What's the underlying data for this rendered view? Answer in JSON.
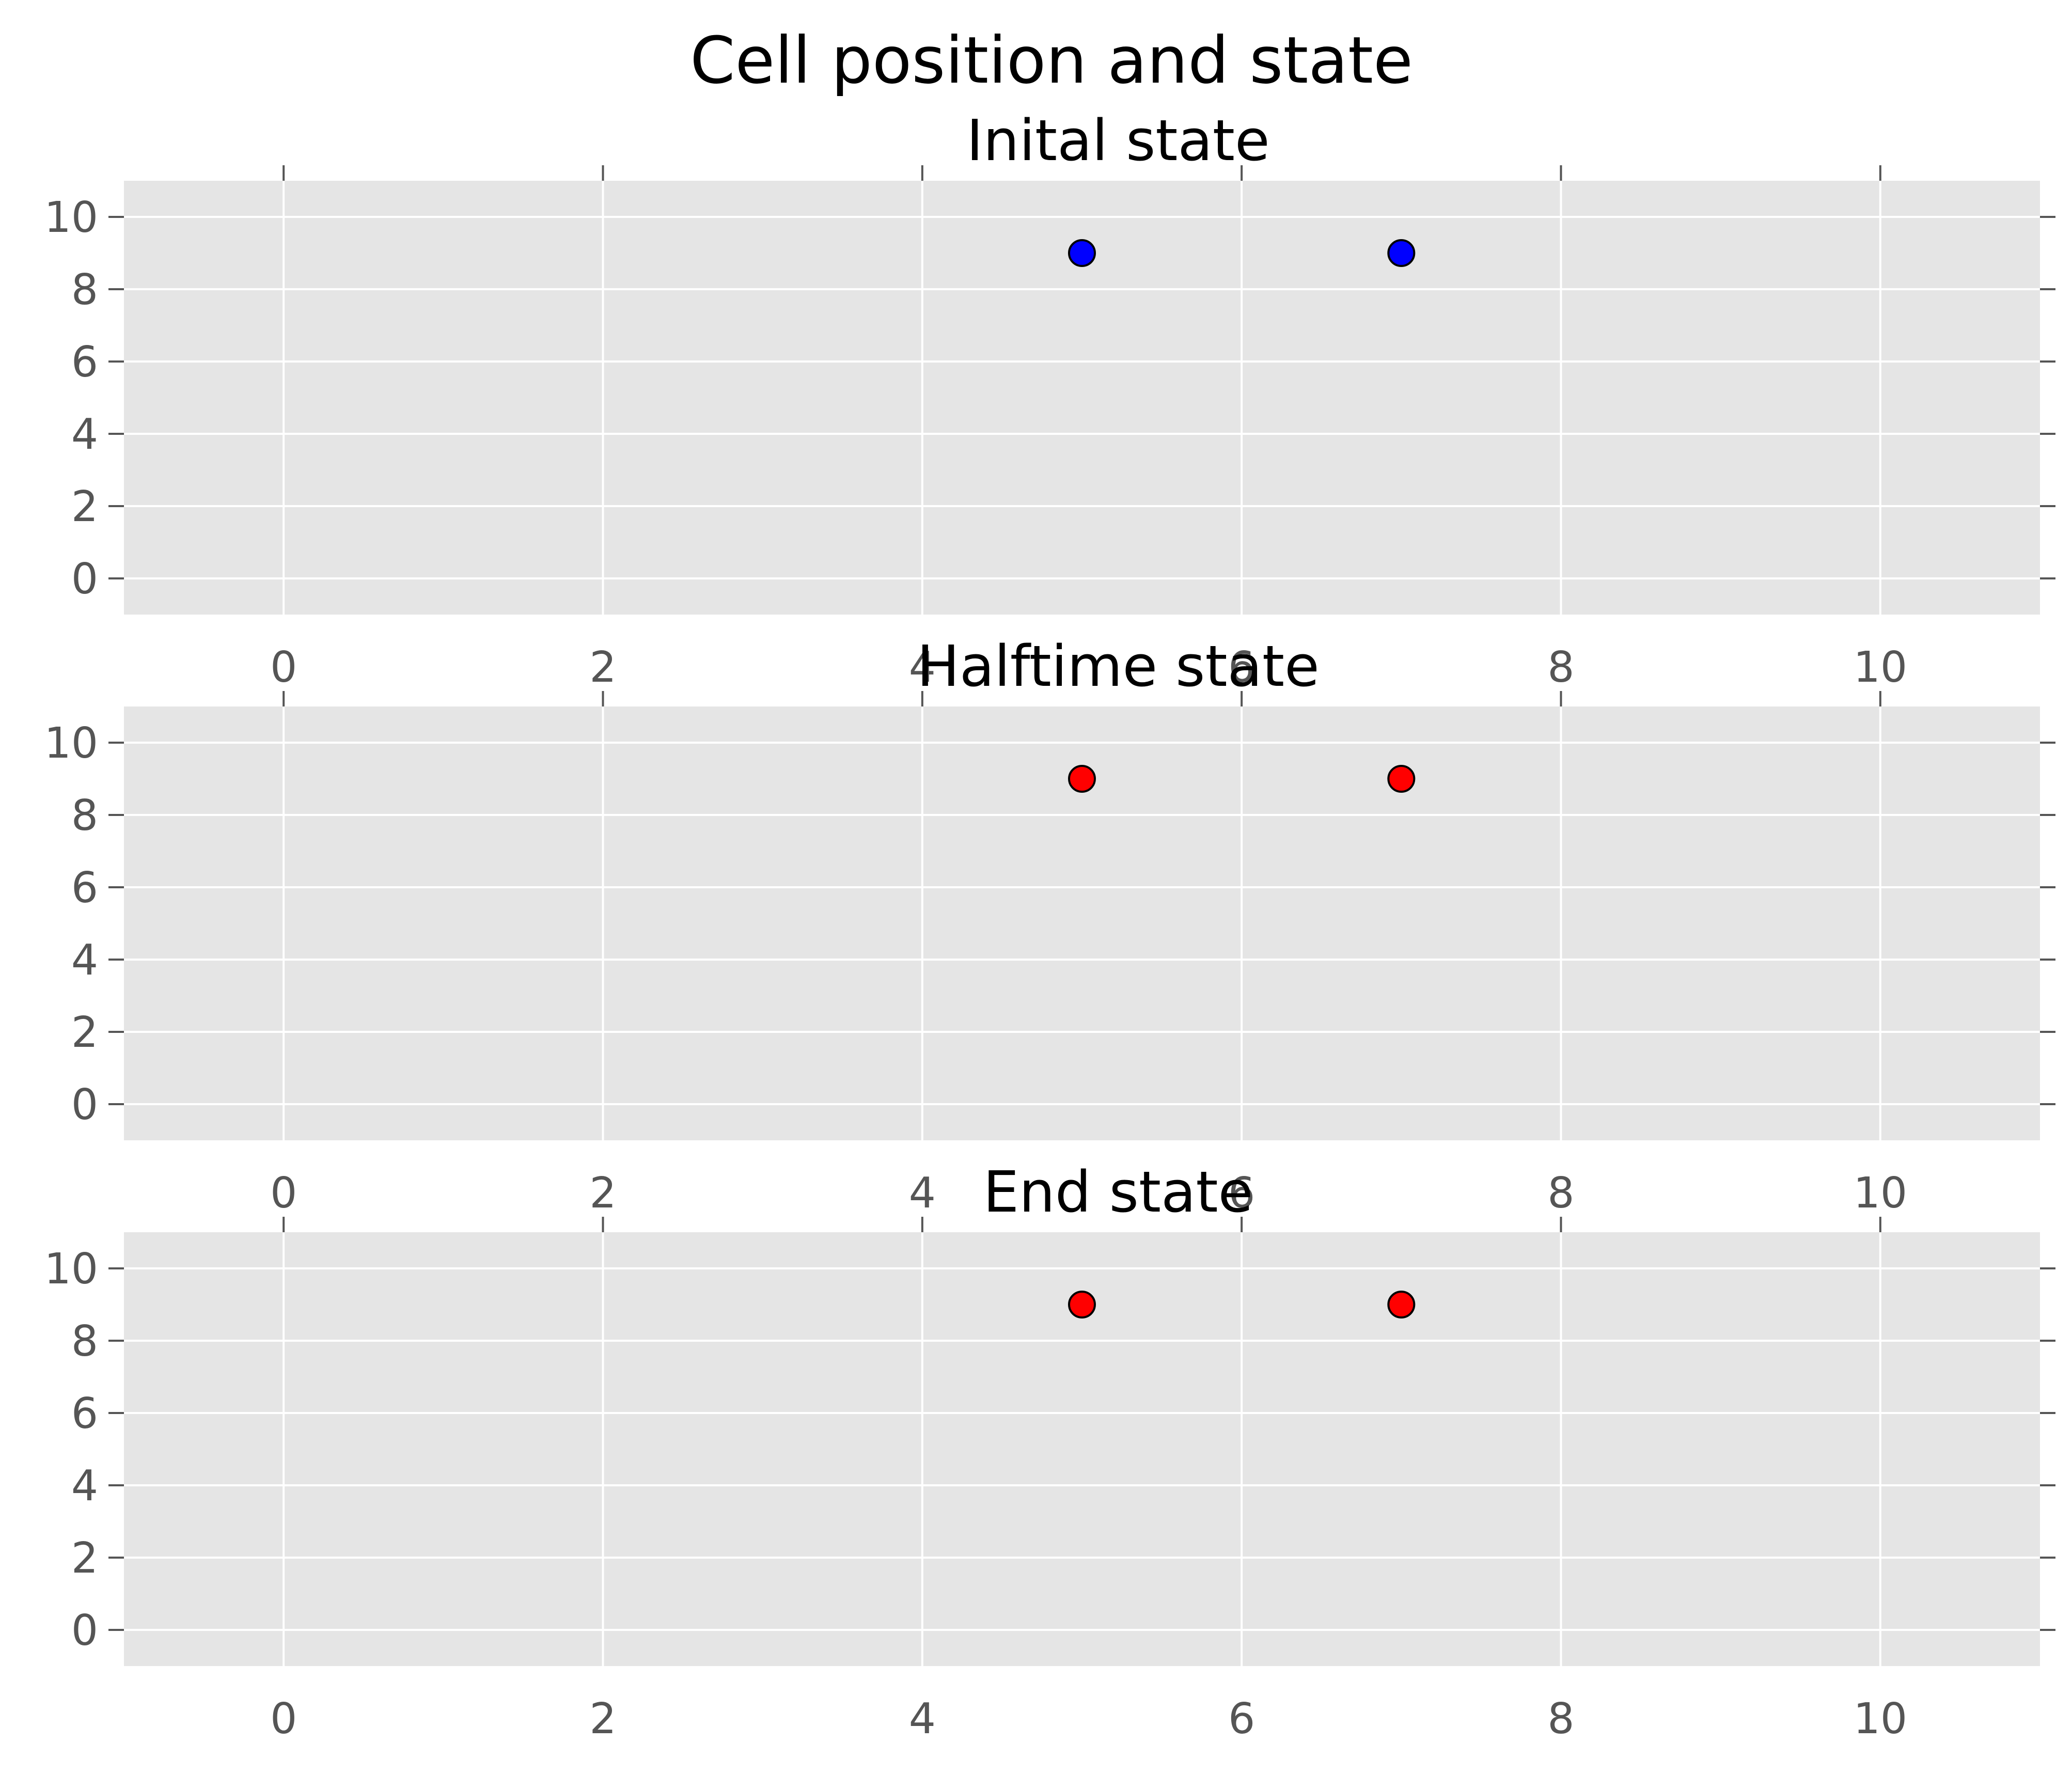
{
  "figure": {
    "title": "Cell position and state",
    "background": "#ffffff"
  },
  "style": {
    "axes_facecolor": "#E5E5E5",
    "grid_color": "#ffffff",
    "tick_color": "#555555",
    "marker_edge": "#000000",
    "colors": {
      "blue": "#0000FF",
      "red": "#FF0000"
    }
  },
  "chart_data": [
    {
      "type": "scatter",
      "title": "Inital state",
      "xlim": [
        -1,
        11
      ],
      "ylim": [
        -1,
        11
      ],
      "xticks": [
        0,
        2,
        4,
        6,
        8,
        10
      ],
      "yticks": [
        0,
        2,
        4,
        6,
        8,
        10
      ],
      "grid": true,
      "points": [
        {
          "x": 5,
          "y": 9,
          "color": "#0000FF"
        },
        {
          "x": 7,
          "y": 9,
          "color": "#0000FF"
        }
      ]
    },
    {
      "type": "scatter",
      "title": "Halftime state",
      "xlim": [
        -1,
        11
      ],
      "ylim": [
        -1,
        11
      ],
      "xticks": [
        0,
        2,
        4,
        6,
        8,
        10
      ],
      "yticks": [
        0,
        2,
        4,
        6,
        8,
        10
      ],
      "grid": true,
      "points": [
        {
          "x": 5,
          "y": 9,
          "color": "#FF0000"
        },
        {
          "x": 7,
          "y": 9,
          "color": "#FF0000"
        }
      ]
    },
    {
      "type": "scatter",
      "title": "End state",
      "xlim": [
        -1,
        11
      ],
      "ylim": [
        -1,
        11
      ],
      "xticks": [
        0,
        2,
        4,
        6,
        8,
        10
      ],
      "yticks": [
        0,
        2,
        4,
        6,
        8,
        10
      ],
      "grid": true,
      "points": [
        {
          "x": 5,
          "y": 9,
          "color": "#FF0000"
        },
        {
          "x": 7,
          "y": 9,
          "color": "#FF0000"
        }
      ]
    }
  ]
}
